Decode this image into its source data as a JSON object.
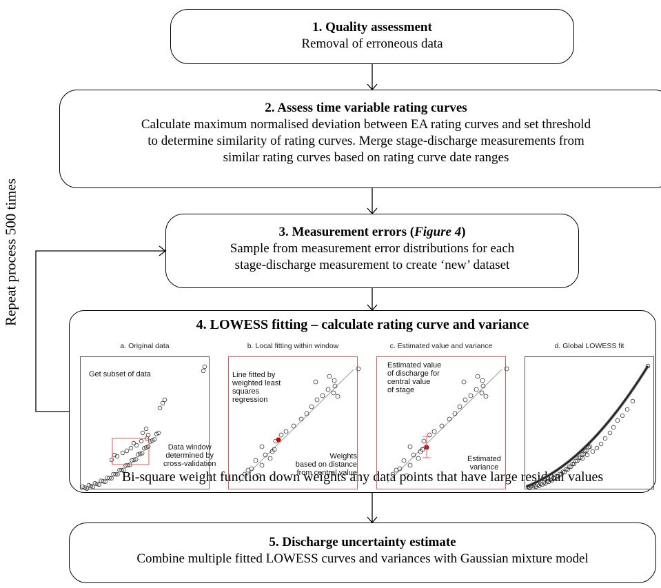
{
  "step1": {
    "title": "1. Quality assessment",
    "text": "Removal of erroneous data"
  },
  "step2": {
    "title": "2. Assess time variable rating curves",
    "lines": [
      "Calculate maximum normalised deviation between EA rating curves and set threshold",
      "to determine similarity of rating curves.  Merge stage-discharge measurements from",
      "similar rating curves based on rating curve date ranges"
    ]
  },
  "step3": {
    "title_prefix": "3. Measurement errors (",
    "title_ref": "Figure 4",
    "title_suffix": ")",
    "lines": [
      "Sample from measurement error distributions for each",
      "stage-discharge measurement to create ‘new’ dataset"
    ]
  },
  "step4": {
    "title": "4. LOWESS fitting – calculate rating curve and variance",
    "footer": "Bi-square weight function down weights any data points that have large residual values",
    "panels": {
      "a": {
        "caption": "a. Original data",
        "note1": "Get subset of data",
        "note2": [
          "Data window",
          "determined by",
          "cross-validation"
        ]
      },
      "b": {
        "caption": "b. Local fitting within window",
        "note1": [
          "Line fitted by",
          "weighted least",
          "squares",
          "regression"
        ],
        "note2": [
          "Weights",
          "based on distance",
          "from central value"
        ]
      },
      "c": {
        "caption": "c. Estimated value and variance",
        "note1": [
          "Estimated value",
          "of discharge for",
          "central value",
          "of stage"
        ],
        "note2": [
          "Estimated",
          "variance"
        ]
      },
      "d": {
        "caption": "d. Global LOWESS fit"
      }
    }
  },
  "step5": {
    "title": "5. Discharge uncertainty estimate",
    "text": "Combine multiple fitted LOWESS curves and variances with Gaussian mixture model"
  },
  "loop_label": "Repeat process 500 times",
  "colors": {
    "highlight": "#e05a5a",
    "point": "#cc0000",
    "line": "#000000"
  }
}
